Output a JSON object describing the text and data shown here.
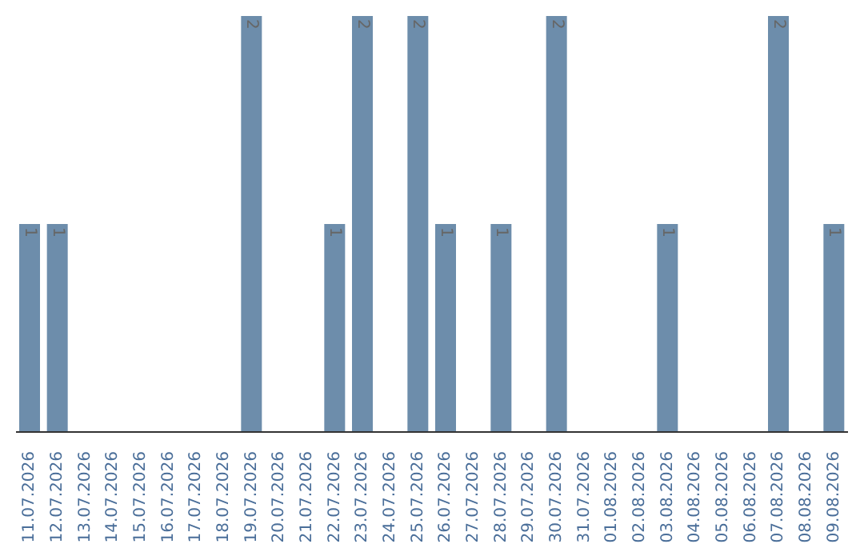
{
  "chart_data": {
    "type": "bar",
    "categories": [
      "11.07.2026",
      "12.07.2026",
      "13.07.2026",
      "14.07.2026",
      "15.07.2026",
      "16.07.2026",
      "17.07.2026",
      "18.07.2026",
      "19.07.2026",
      "20.07.2026",
      "21.07.2026",
      "22.07.2026",
      "23.07.2026",
      "24.07.2026",
      "25.07.2026",
      "26.07.2026",
      "27.07.2026",
      "28.07.2026",
      "29.07.2026",
      "30.07.2026",
      "31.07.2026",
      "01.08.2026",
      "02.08.2026",
      "03.08.2026",
      "04.08.2026",
      "05.08.2026",
      "06.08.2026",
      "07.08.2026",
      "08.08.2026",
      "09.08.2026"
    ],
    "values": [
      1,
      1,
      0,
      0,
      0,
      0,
      0,
      0,
      2,
      0,
      0,
      1,
      2,
      0,
      2,
      1,
      0,
      1,
      0,
      2,
      0,
      0,
      0,
      1,
      0,
      0,
      0,
      2,
      0,
      1
    ],
    "value_labels": [
      "1",
      "1",
      null,
      null,
      null,
      null,
      null,
      null,
      "2",
      null,
      null,
      "1",
      "2",
      null,
      "2",
      "1",
      null,
      "1",
      null,
      "2",
      null,
      null,
      null,
      "1",
      null,
      null,
      null,
      "2",
      null,
      "1"
    ],
    "color": "#6d8dab",
    "grid": false,
    "legend": false
  }
}
